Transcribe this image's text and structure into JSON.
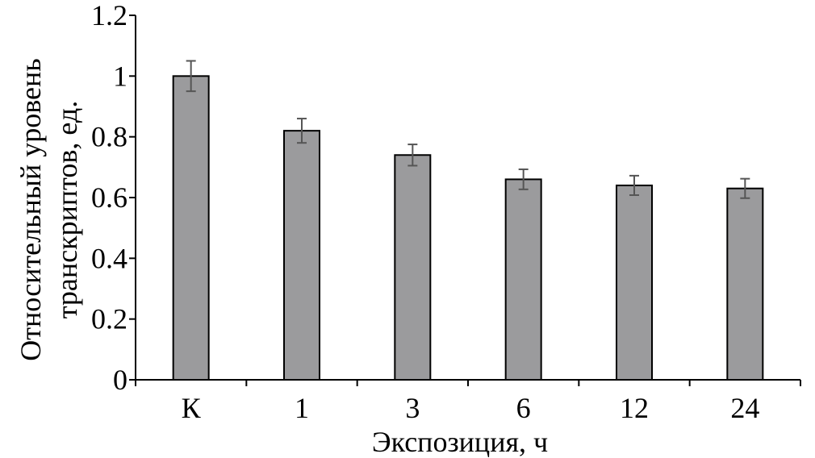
{
  "chart_data": {
    "type": "bar",
    "categories": [
      "К",
      "1",
      "3",
      "6",
      "12",
      "24"
    ],
    "values": [
      1.0,
      0.82,
      0.74,
      0.66,
      0.64,
      0.63
    ],
    "errors": [
      0.05,
      0.04,
      0.035,
      0.033,
      0.032,
      0.032
    ],
    "title": "",
    "xlabel": "Экспозиция, ч",
    "ylabel_lines": [
      "Относительный уровень",
      "транскриптов, ед."
    ],
    "ylim": [
      0,
      1.2
    ],
    "yticks": [
      "0",
      "0.2",
      "0.4",
      "0.6",
      "0.8",
      "1",
      "1.2"
    ],
    "grid": false,
    "colors": {
      "bar": "#9b9b9d",
      "error_bar": "#555555"
    }
  }
}
